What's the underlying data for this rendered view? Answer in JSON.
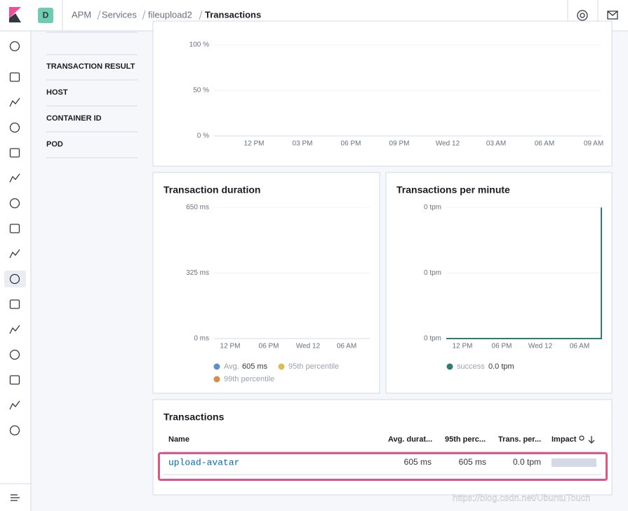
{
  "header": {
    "avatar": "D",
    "breadcrumbs": [
      "APM",
      "Services",
      "fileupload2",
      "Transactions"
    ]
  },
  "filters": [
    "TRANSACTION RESULT",
    "HOST",
    "CONTAINER ID",
    "POD"
  ],
  "top_chart": {
    "yticks": [
      "100 %",
      "50 %",
      "0 %"
    ],
    "xticks": [
      "12 PM",
      "03 PM",
      "06 PM",
      "09 PM",
      "Wed 12",
      "03 AM",
      "06 AM",
      "09 AM"
    ]
  },
  "duration": {
    "title": "Transaction duration",
    "yticks": [
      "650 ms",
      "325 ms",
      "0 ms"
    ],
    "xticks": [
      "12 PM",
      "06 PM",
      "Wed 12",
      "06 AM"
    ],
    "legend": [
      {
        "name": "Avg.",
        "value": "605 ms"
      },
      {
        "name": "95th percentile"
      },
      {
        "name": "99th percentile"
      }
    ]
  },
  "tpm": {
    "title": "Transactions per minute",
    "yticks": [
      "0 tpm",
      "0 tpm",
      "0 tpm"
    ],
    "xticks": [
      "12 PM",
      "06 PM",
      "Wed 12",
      "06 AM"
    ],
    "legend": [
      {
        "name": "success",
        "value": "0.0 tpm"
      }
    ]
  },
  "transactions": {
    "title": "Transactions",
    "columns": [
      "Name",
      "Avg. durat...",
      "95th perc...",
      "Trans. per...",
      "Impact"
    ],
    "rows": [
      [
        "upload-avatar",
        "605 ms",
        "605 ms",
        "0.0 tpm"
      ]
    ]
  },
  "watermark": "https://blog.csdn.net/UbuntuTouch"
}
